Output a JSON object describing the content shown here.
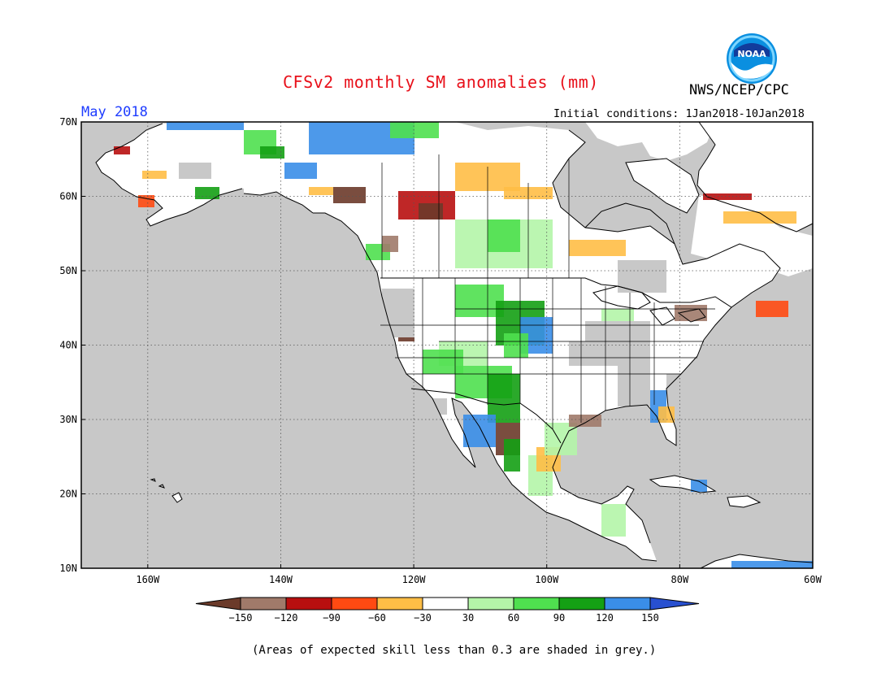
{
  "title": "CFSv2 monthly SM anomalies (mm)",
  "agency": "NWS/NCEP/CPC",
  "logo_text": "NOAA",
  "valid_month": "May 2018",
  "initial_conditions": "Initial conditions: 1Jan2018-10Jan2018",
  "footnote": "(Areas of expected skill less than 0.3 are shaded in grey.)",
  "map": {
    "projection": "lat-lon",
    "lat_range": [
      10,
      70
    ],
    "lon_range": [
      -170,
      -60
    ],
    "lat_labels": [
      "70N",
      "60N",
      "50N",
      "40N",
      "30N",
      "20N",
      "10N"
    ],
    "lon_labels": [
      "160W",
      "140W",
      "120W",
      "100W",
      "80W",
      "60W"
    ],
    "low_skill_color": "#c8c8c8",
    "ocean_color": "#c8c8c8",
    "land_color": "#ffffff"
  },
  "colorbar": {
    "tick_labels": [
      "−150",
      "−120",
      "−90",
      "−60",
      "−30",
      "30",
      "60",
      "90",
      "120",
      "150"
    ],
    "colors": [
      "#6b3a2a",
      "#a07a6a",
      "#b80f0f",
      "#ff4a12",
      "#ffbe46",
      "#ffffff",
      "#b4f5a8",
      "#4fe04f",
      "#14a014",
      "#3a8ee8",
      "#2850d0"
    ]
  },
  "colors": {
    "title": "#e8101a",
    "month": "#1e3cff",
    "text": "#000000"
  }
}
